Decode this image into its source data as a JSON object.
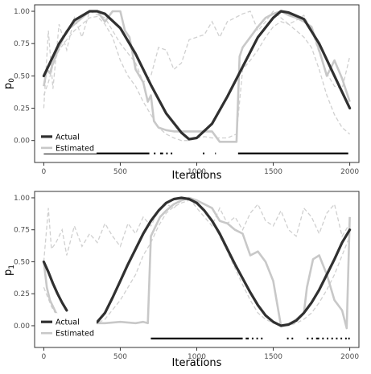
{
  "colors": {
    "actual": "#303030",
    "estimated": "#c8c8c8",
    "band": "#d0d0d0",
    "frame": "#333333",
    "tick_text": "#4d4d4d",
    "bar": "#000000"
  },
  "chart_data": [
    {
      "type": "line",
      "xlabel": "Iterations",
      "ylabel": "p",
      "ylabel_sub": "0",
      "xlim": [
        -60,
        2060
      ],
      "ylim": [
        -0.17,
        1.05
      ],
      "x_ticks": [
        0,
        500,
        1000,
        1500,
        2000
      ],
      "x_tick_labels": [
        "0",
        "500",
        "1000",
        "1500",
        "2000"
      ],
      "y_ticks": [
        0,
        0.25,
        0.5,
        0.75,
        1
      ],
      "y_tick_labels": [
        "0.00",
        "0.25",
        "0.50",
        "0.75",
        "1.00"
      ],
      "grid": false,
      "legend_position": "bottom-left",
      "legend": [
        "Actual",
        "Estimated"
      ],
      "series": [
        {
          "name": "Actual",
          "style": "solid-dark",
          "x": [
            0,
            100,
            200,
            300,
            350,
            400,
            500,
            600,
            700,
            800,
            900,
            950,
            1000,
            1100,
            1200,
            1300,
            1400,
            1500,
            1550,
            1600,
            1700,
            1800,
            1900,
            2000
          ],
          "y": [
            0.5,
            0.75,
            0.93,
            1.0,
            1.0,
            0.98,
            0.87,
            0.67,
            0.43,
            0.21,
            0.06,
            0.01,
            0.02,
            0.13,
            0.34,
            0.57,
            0.8,
            0.95,
            1.0,
            0.99,
            0.94,
            0.75,
            0.5,
            0.25
          ]
        },
        {
          "name": "Estimated",
          "style": "solid-light",
          "x": [
            0,
            20,
            40,
            60,
            100,
            150,
            200,
            250,
            300,
            350,
            400,
            450,
            500,
            530,
            560,
            600,
            650,
            680,
            700,
            720,
            750,
            800,
            850,
            900,
            950,
            1000,
            1050,
            1100,
            1150,
            1200,
            1260,
            1280,
            1300,
            1350,
            1400,
            1450,
            1500,
            1550,
            1600,
            1650,
            1700,
            1750,
            1800,
            1850,
            1900,
            1950,
            2000
          ],
          "y": [
            0.42,
            0.55,
            0.52,
            0.6,
            0.72,
            0.85,
            0.9,
            0.95,
            1.0,
            1.0,
            0.92,
            1.0,
            1.0,
            0.85,
            0.8,
            0.55,
            0.45,
            0.3,
            0.35,
            0.15,
            0.1,
            0.08,
            0.07,
            0.07,
            0.07,
            0.07,
            0.07,
            0.07,
            -0.01,
            -0.01,
            -0.01,
            0.65,
            0.72,
            0.8,
            0.88,
            0.95,
            0.98,
            1.0,
            0.97,
            0.95,
            0.92,
            0.88,
            0.7,
            0.5,
            0.62,
            0.48,
            0.3
          ]
        },
        {
          "name": "",
          "style": "dashed-light",
          "x": [
            0,
            30,
            60,
            100,
            150,
            200,
            250,
            300,
            400,
            500,
            600,
            650,
            700,
            750,
            800,
            850,
            900,
            950,
            1000,
            1050,
            1100,
            1150,
            1200,
            1250,
            1300,
            1350,
            1400,
            1450,
            1500,
            1550,
            1600,
            1650,
            1700,
            1750,
            1800,
            1850,
            1900,
            1950,
            2000
          ],
          "y": [
            0.25,
            0.85,
            0.4,
            0.9,
            0.7,
            0.95,
            0.8,
            1.0,
            0.95,
            0.75,
            0.6,
            0.45,
            0.5,
            0.72,
            0.7,
            0.55,
            0.6,
            0.78,
            0.8,
            0.82,
            0.92,
            0.8,
            0.92,
            0.95,
            0.98,
            1.0,
            0.85,
            0.92,
            1.0,
            0.95,
            0.9,
            0.93,
            0.97,
            0.85,
            0.68,
            0.52,
            0.42,
            0.4,
            0.65
          ]
        },
        {
          "name": "",
          "style": "dashed-light",
          "x": [
            0,
            30,
            60,
            100,
            150,
            200,
            250,
            300,
            350,
            400,
            450,
            500,
            550,
            600,
            650,
            700,
            750,
            800,
            850,
            900,
            950,
            1000,
            1050,
            1100,
            1150,
            1200,
            1260,
            1300,
            1350,
            1400,
            1450,
            1500,
            1550,
            1600,
            1650,
            1700,
            1750,
            1800,
            1850,
            1900,
            1950,
            2000
          ],
          "y": [
            0.35,
            0.45,
            0.58,
            0.7,
            0.78,
            0.85,
            0.9,
            0.95,
            0.96,
            0.9,
            0.8,
            0.62,
            0.5,
            0.42,
            0.3,
            0.2,
            0.1,
            0.05,
            0.02,
            0.0,
            0.0,
            0.02,
            0.03,
            0.02,
            0.02,
            0.02,
            0.05,
            0.55,
            0.62,
            0.7,
            0.8,
            0.88,
            0.92,
            0.9,
            0.85,
            0.8,
            0.72,
            0.55,
            0.35,
            0.2,
            0.1,
            0.05
          ]
        }
      ],
      "indicator_y": -0.1,
      "indicator_segments": [
        [
          0,
          690
        ],
        [
          720,
          730
        ],
        [
          760,
          780
        ],
        [
          800,
          810
        ],
        [
          830,
          840
        ],
        [
          1040,
          1050
        ],
        [
          1120,
          1125
        ],
        [
          1270,
          1990
        ]
      ]
    },
    {
      "type": "line",
      "xlabel": "Iterations",
      "ylabel": "p",
      "ylabel_sub": "1",
      "xlim": [
        -60,
        2060
      ],
      "ylim": [
        -0.17,
        1.05
      ],
      "x_ticks": [
        0,
        500,
        1000,
        1500,
        2000
      ],
      "x_tick_labels": [
        "0",
        "500",
        "1000",
        "1500",
        "2000"
      ],
      "y_ticks": [
        0,
        0.25,
        0.5,
        0.75,
        1
      ],
      "y_tick_labels": [
        "0.00",
        "0.25",
        "0.50",
        "0.75",
        "1.00"
      ],
      "grid": false,
      "legend_position": "bottom-left",
      "legend": [
        "Actual",
        "Estimated"
      ],
      "series": [
        {
          "name": "Actual",
          "style": "solid-dark",
          "x_segments": [
            [
              0,
              30,
              60,
              90,
              120,
              150
            ],
            [
              300,
              350,
              400,
              450,
              500,
              550,
              600,
              650,
              700,
              750,
              800,
              850,
              900,
              950,
              1000,
              1050,
              1100,
              1150,
              1200,
              1250,
              1300,
              1350,
              1400,
              1450,
              1500,
              1550,
              1600,
              1650,
              1700,
              1750,
              1800,
              1850,
              1900,
              1950,
              2000
            ]
          ],
          "y_segments": [
            [
              0.5,
              0.42,
              0.33,
              0.25,
              0.18,
              0.12
            ],
            [
              0.0,
              0.03,
              0.1,
              0.22,
              0.35,
              0.48,
              0.6,
              0.72,
              0.82,
              0.9,
              0.96,
              0.99,
              1.0,
              0.99,
              0.96,
              0.9,
              0.82,
              0.72,
              0.6,
              0.48,
              0.37,
              0.26,
              0.16,
              0.08,
              0.03,
              0.0,
              0.01,
              0.04,
              0.1,
              0.18,
              0.28,
              0.4,
              0.52,
              0.65,
              0.75
            ]
          ]
        },
        {
          "name": "Estimated",
          "style": "solid-light",
          "x": [
            0,
            20,
            40,
            60,
            80,
            100,
            300,
            320,
            400,
            500,
            600,
            650,
            680,
            700,
            720,
            760,
            800,
            850,
            900,
            950,
            1000,
            1050,
            1100,
            1150,
            1200,
            1250,
            1300,
            1350,
            1400,
            1450,
            1500,
            1550,
            1600,
            1650,
            1700,
            1720,
            1760,
            1800,
            1850,
            1900,
            1950,
            1980,
            2000
          ],
          "y": [
            0.5,
            0.3,
            0.2,
            0.15,
            0.1,
            0.08,
            -0.02,
            0.02,
            0.02,
            0.03,
            0.02,
            0.03,
            0.02,
            0.7,
            0.75,
            0.85,
            0.9,
            0.95,
            0.98,
            1.0,
            0.98,
            0.95,
            0.92,
            0.82,
            0.8,
            0.75,
            0.72,
            0.55,
            0.58,
            0.5,
            0.35,
            0.0,
            0.01,
            0.05,
            0.1,
            0.3,
            0.52,
            0.55,
            0.4,
            0.2,
            0.12,
            -0.02,
            0.85
          ]
        },
        {
          "name": "",
          "style": "dashed-light",
          "x": [
            0,
            30,
            50,
            80,
            120,
            150,
            200,
            250,
            300,
            350,
            400,
            450,
            500,
            550,
            600,
            650,
            700,
            750,
            800,
            850,
            900,
            950,
            1000,
            1050,
            1100,
            1150,
            1200,
            1250,
            1300,
            1350,
            1400,
            1450,
            1500,
            1550,
            1600,
            1650,
            1700,
            1750,
            1800,
            1850,
            1900,
            1950,
            2000
          ],
          "y": [
            0.5,
            0.92,
            0.6,
            0.65,
            0.75,
            0.55,
            0.78,
            0.62,
            0.72,
            0.65,
            0.8,
            0.7,
            0.62,
            0.8,
            0.72,
            0.85,
            0.78,
            0.9,
            0.95,
            0.92,
            0.98,
            1.0,
            0.92,
            0.85,
            0.78,
            0.92,
            0.8,
            0.85,
            0.75,
            0.88,
            0.95,
            0.82,
            0.78,
            0.9,
            0.75,
            0.7,
            0.92,
            0.85,
            0.72,
            0.88,
            0.95,
            0.7,
            0.8
          ]
        },
        {
          "name": "",
          "style": "dashed-light",
          "x": [
            0,
            50,
            100,
            150,
            200,
            250,
            300,
            350,
            400,
            500,
            600,
            650,
            700,
            750,
            800,
            850,
            900,
            950,
            1000,
            1050,
            1100,
            1150,
            1200,
            1250,
            1300,
            1350,
            1400,
            1450,
            1500,
            1550,
            1600,
            1650,
            1700,
            1750,
            1800,
            1850,
            1900,
            1950,
            2000
          ],
          "y": [
            0.3,
            0.15,
            0.05,
            0.02,
            0.0,
            0.0,
            0.0,
            0.02,
            0.05,
            0.2,
            0.4,
            0.55,
            0.65,
            0.78,
            0.88,
            0.93,
            0.96,
            0.98,
            0.95,
            0.9,
            0.82,
            0.7,
            0.58,
            0.45,
            0.32,
            0.2,
            0.1,
            0.05,
            0.02,
            0.0,
            0.0,
            0.02,
            0.05,
            0.1,
            0.18,
            0.28,
            0.4,
            0.55,
            0.7
          ]
        }
      ],
      "indicator_y": -0.1,
      "indicator_segments": [
        [
          700,
          1300
        ],
        [
          1320,
          1340
        ],
        [
          1360,
          1370
        ],
        [
          1390,
          1400
        ],
        [
          1420,
          1430
        ],
        [
          1590,
          1600
        ],
        [
          1620,
          1630
        ],
        [
          1720,
          1730
        ],
        [
          1750,
          1760
        ],
        [
          1780,
          1800
        ],
        [
          1820,
          1830
        ],
        [
          1850,
          1860
        ],
        [
          1880,
          1890
        ],
        [
          1910,
          1920
        ],
        [
          1940,
          1950
        ],
        [
          1970,
          1980
        ],
        [
          1990,
          2000
        ]
      ]
    }
  ]
}
